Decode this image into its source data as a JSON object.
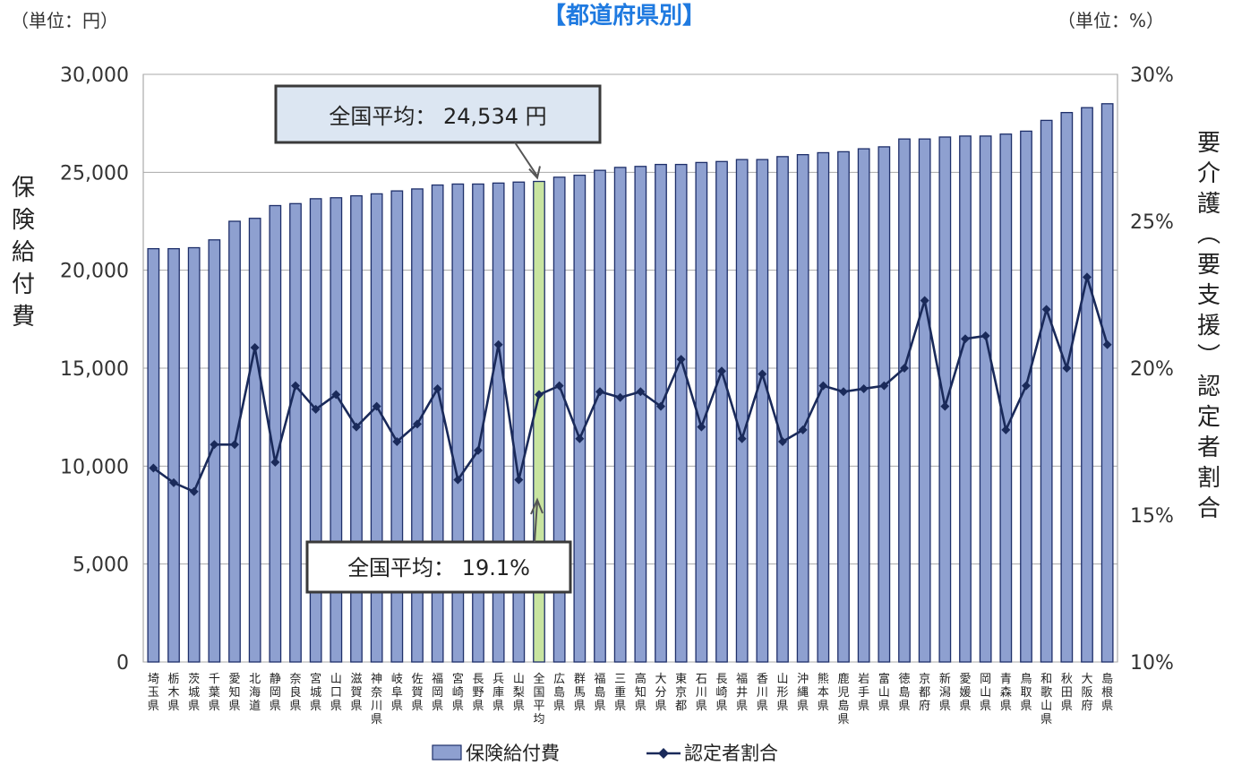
{
  "chart_data": {
    "type": "bar+line",
    "title": "【都道府県別】",
    "left_unit": "（単位：円）",
    "right_unit": "（単位：%）",
    "left_axis_label": "保険給付費",
    "right_axis_label": "要介護（要支援）認定者割合",
    "y_left": {
      "min": 0,
      "max": 30000,
      "ticks": [
        "0",
        "5,000",
        "10,000",
        "15,000",
        "20,000",
        "25,000",
        "30,000"
      ]
    },
    "y_right": {
      "min": 10,
      "max": 30,
      "ticks": [
        "10%",
        "15%",
        "20%",
        "25%",
        "30%"
      ]
    },
    "categories": [
      "埼玉県",
      "栃木県",
      "茨城県",
      "千葉県",
      "愛知県",
      "北海道",
      "静岡県",
      "奈良県",
      "宮城県",
      "山口県",
      "滋賀県",
      "神奈川県",
      "岐阜県",
      "佐賀県",
      "福岡県",
      "宮崎県",
      "長野県",
      "兵庫県",
      "山梨県",
      "全国平均",
      "広島県",
      "群馬県",
      "福島県",
      "三重県",
      "高知県",
      "大分県",
      "東京都",
      "石川県",
      "長崎県",
      "福井県",
      "香川県",
      "山形県",
      "沖縄県",
      "熊本県",
      "鹿児島県",
      "岩手県",
      "富山県",
      "徳島県",
      "京都府",
      "新潟県",
      "愛媛県",
      "岡山県",
      "青森県",
      "鳥取県",
      "和歌山県",
      "秋田県",
      "大阪府",
      "島根県"
    ],
    "highlight_index": 19,
    "series": [
      {
        "name": "保険給付費",
        "type": "bar",
        "axis": "left",
        "color": "#8ea0d0",
        "highlight_color": "#c8e4a0",
        "values": [
          21100,
          21100,
          21150,
          21550,
          22500,
          22650,
          23300,
          23400,
          23650,
          23700,
          23800,
          23900,
          24050,
          24150,
          24350,
          24400,
          24400,
          24450,
          24500,
          24534,
          24750,
          24850,
          25100,
          25250,
          25300,
          25400,
          25400,
          25500,
          25550,
          25650,
          25650,
          25800,
          25900,
          26000,
          26050,
          26200,
          26300,
          26700,
          26700,
          26800,
          26850,
          26850,
          26950,
          27100,
          27650,
          28050,
          28300,
          28500
        ]
      },
      {
        "name": "認定者割合",
        "type": "line",
        "axis": "right",
        "color": "#1a2a5a",
        "values": [
          16.6,
          16.1,
          15.8,
          17.4,
          17.4,
          20.7,
          16.8,
          19.4,
          18.6,
          19.1,
          18.0,
          18.7,
          17.5,
          18.1,
          19.3,
          16.2,
          17.2,
          20.8,
          16.2,
          19.1,
          19.4,
          17.6,
          19.2,
          19.0,
          19.2,
          18.7,
          20.3,
          18.0,
          19.9,
          17.6,
          19.8,
          17.5,
          17.9,
          19.4,
          19.2,
          19.3,
          19.4,
          20.0,
          22.3,
          18.7,
          21.0,
          21.1,
          17.9,
          19.4,
          22.0,
          20.0,
          23.1,
          20.8
        ]
      }
    ],
    "annotations": [
      {
        "text": "全国平均： 24,534 円",
        "target": "bar",
        "index": 19
      },
      {
        "text": "全国平均： 19.1%",
        "target": "line",
        "index": 19
      }
    ],
    "legend": {
      "position": "bottom",
      "items": [
        "保険給付費",
        "認定者割合"
      ]
    },
    "grid": true
  }
}
